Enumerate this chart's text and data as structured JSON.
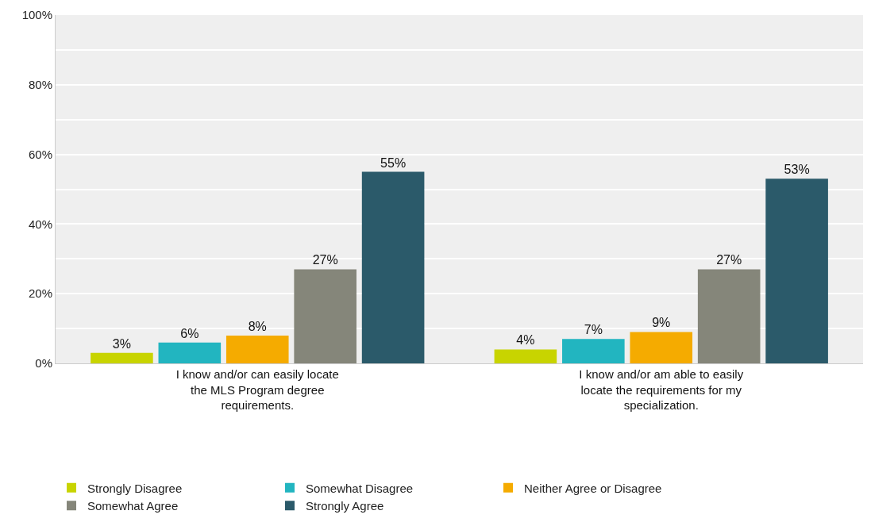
{
  "chart_data": {
    "type": "bar",
    "categories": [
      "I know and/or can easily locate the MLS Program degree requirements.",
      "I know and/or am able to easily locate the requirements for my specialization."
    ],
    "series": [
      {
        "name": "Strongly Disagree",
        "color": "#c8d400",
        "values": [
          3,
          4
        ],
        "value_labels": [
          "3%",
          "4%"
        ]
      },
      {
        "name": "Somewhat Disagree",
        "color": "#22b5c0",
        "values": [
          6,
          7
        ],
        "value_labels": [
          "6%",
          "7%"
        ]
      },
      {
        "name": "Neither Agree or Disagree",
        "color": "#f5ab00",
        "values": [
          8,
          9
        ],
        "value_labels": [
          "8%",
          "9%"
        ]
      },
      {
        "name": "Somewhat Agree",
        "color": "#85867a",
        "values": [
          27,
          27
        ],
        "value_labels": [
          "27%",
          "27%"
        ]
      },
      {
        "name": "Strongly Agree",
        "color": "#2b5a6a",
        "values": [
          55,
          53
        ],
        "value_labels": [
          "55%",
          "53%"
        ]
      }
    ],
    "ylim": [
      0,
      100
    ],
    "yticks": [
      {
        "value": 0,
        "label": "0%"
      },
      {
        "value": 10,
        "label": null
      },
      {
        "value": 20,
        "label": "20%"
      },
      {
        "value": 30,
        "label": null
      },
      {
        "value": 40,
        "label": "40%"
      },
      {
        "value": 50,
        "label": null
      },
      {
        "value": 60,
        "label": "60%"
      },
      {
        "value": 70,
        "label": null
      },
      {
        "value": 80,
        "label": "80%"
      },
      {
        "value": 90,
        "label": null
      },
      {
        "value": 100,
        "label": "100%"
      }
    ],
    "grid": "y",
    "legend": "bottom"
  }
}
